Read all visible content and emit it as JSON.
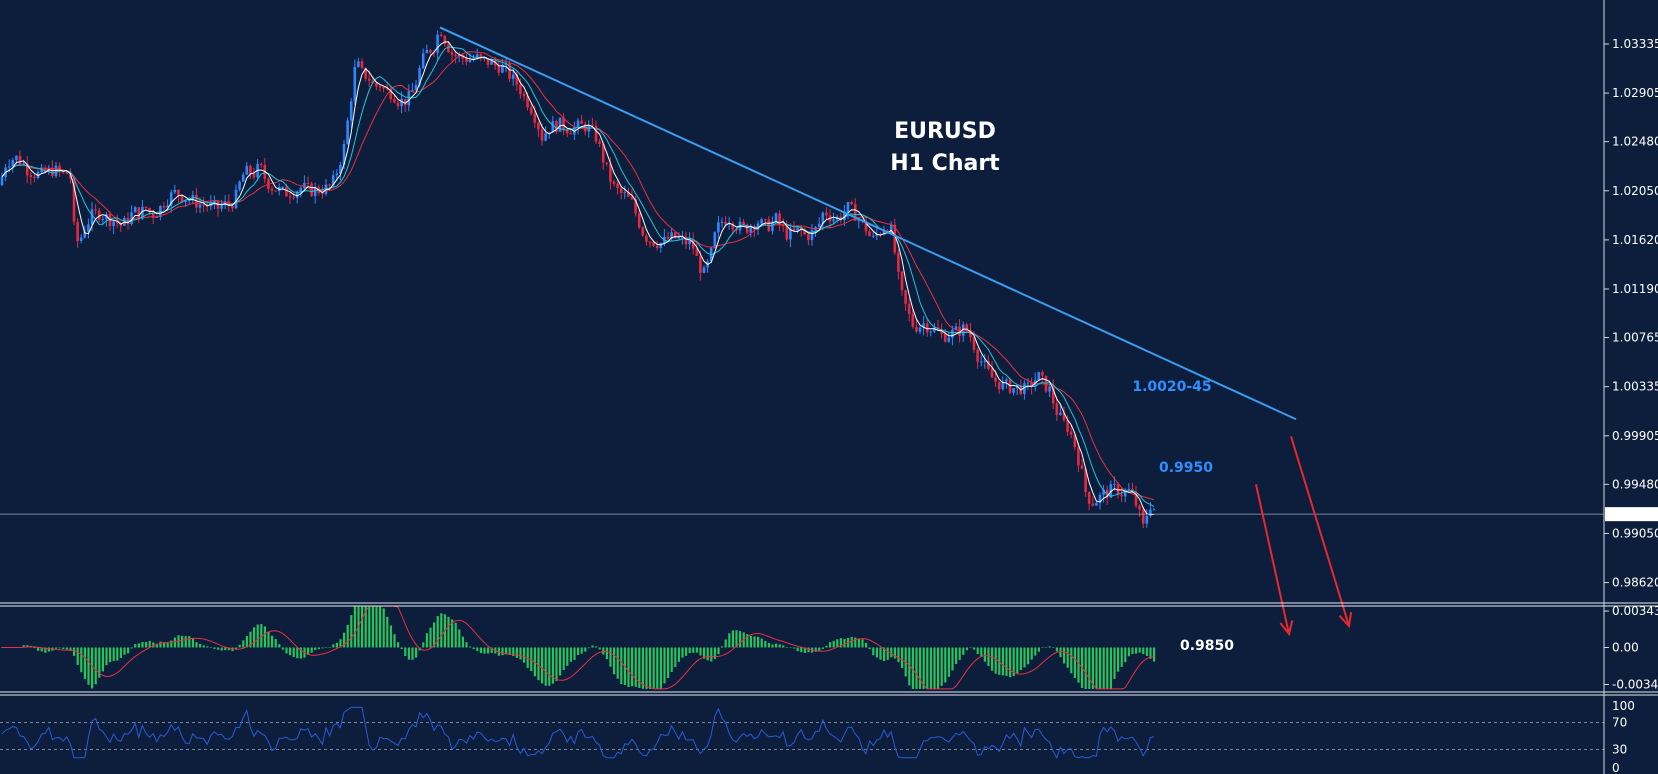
{
  "chart_data": [
    {
      "type": "candlestick",
      "title": "EURUSD",
      "subtitle": "H1 Chart",
      "ylim": [
        0.9845,
        1.0372
      ],
      "yticks": [
        "1.03335",
        "1.02905",
        "1.02480",
        "1.02050",
        "1.01620",
        "1.01190",
        "1.00765",
        "1.00335",
        "0.99905",
        "0.99480",
        "0.99050",
        "0.98620"
      ],
      "current_price": "0.99219",
      "price_path": [
        [
          0,
          1.021
        ],
        [
          5,
          1.0228
        ],
        [
          10,
          1.0232
        ],
        [
          16,
          1.0234
        ],
        [
          22,
          1.023
        ],
        [
          28,
          1.0223
        ],
        [
          34,
          1.022
        ],
        [
          40,
          1.0219
        ],
        [
          46,
          1.0221
        ],
        [
          52,
          1.0223
        ],
        [
          58,
          1.0222
        ],
        [
          64,
          1.0219
        ],
        [
          70,
          1.0222
        ],
        [
          75,
          1.016
        ],
        [
          80,
          1.0162
        ],
        [
          86,
          1.0175
        ],
        [
          92,
          1.0183
        ],
        [
          98,
          1.0186
        ],
        [
          104,
          1.0183
        ],
        [
          110,
          1.018
        ],
        [
          116,
          1.0178
        ],
        [
          122,
          1.0174
        ],
        [
          128,
          1.018
        ],
        [
          134,
          1.0187
        ],
        [
          140,
          1.0185
        ],
        [
          146,
          1.019
        ],
        [
          152,
          1.0184
        ],
        [
          158,
          1.0187
        ],
        [
          164,
          1.0195
        ],
        [
          170,
          1.02
        ],
        [
          176,
          1.0204
        ],
        [
          182,
          1.02
        ],
        [
          188,
          1.0198
        ],
        [
          194,
          1.0196
        ],
        [
          200,
          1.0193
        ],
        [
          206,
          1.0193
        ],
        [
          212,
          1.0191
        ],
        [
          218,
          1.019
        ],
        [
          224,
          1.0193
        ],
        [
          230,
          1.0192
        ],
        [
          236,
          1.02
        ],
        [
          242,
          1.0218
        ],
        [
          248,
          1.0222
        ],
        [
          254,
          1.022
        ],
        [
          260,
          1.0226
        ],
        [
          266,
          1.0214
        ],
        [
          272,
          1.0208
        ],
        [
          278,
          1.0206
        ],
        [
          284,
          1.0203
        ],
        [
          290,
          1.0204
        ],
        [
          296,
          1.0205
        ],
        [
          302,
          1.0208
        ],
        [
          308,
          1.0206
        ],
        [
          314,
          1.0205
        ],
        [
          320,
          1.0206
        ],
        [
          326,
          1.0207
        ],
        [
          332,
          1.021
        ],
        [
          338,
          1.0225
        ],
        [
          344,
          1.0243
        ],
        [
          350,
          1.028
        ],
        [
          356,
          1.0318
        ],
        [
          362,
          1.0308
        ],
        [
          368,
          1.0305
        ],
        [
          374,
          1.0296
        ],
        [
          380,
          1.0298
        ],
        [
          386,
          1.0292
        ],
        [
          392,
          1.0291
        ],
        [
          398,
          1.0284
        ],
        [
          404,
          1.0283
        ],
        [
          410,
          1.0287
        ],
        [
          416,
          1.03
        ],
        [
          422,
          1.0318
        ],
        [
          428,
          1.0328
        ],
        [
          434,
          1.0331
        ],
        [
          440,
          1.0348
        ],
        [
          446,
          1.0335
        ],
        [
          452,
          1.0325
        ],
        [
          458,
          1.0322
        ],
        [
          464,
          1.0321
        ],
        [
          470,
          1.032
        ],
        [
          476,
          1.0322
        ],
        [
          482,
          1.0318
        ],
        [
          488,
          1.0318
        ],
        [
          494,
          1.0315
        ],
        [
          500,
          1.0314
        ],
        [
          506,
          1.0311
        ],
        [
          512,
          1.0303
        ],
        [
          518,
          1.0298
        ],
        [
          524,
          1.0287
        ],
        [
          530,
          1.028
        ],
        [
          536,
          1.0268
        ],
        [
          542,
          1.0252
        ],
        [
          548,
          1.026
        ],
        [
          554,
          1.0262
        ],
        [
          560,
          1.0263
        ],
        [
          566,
          1.026
        ],
        [
          572,
          1.0259
        ],
        [
          578,
          1.0261
        ],
        [
          584,
          1.0262
        ],
        [
          590,
          1.0259
        ],
        [
          596,
          1.0252
        ],
        [
          602,
          1.0236
        ],
        [
          608,
          1.022
        ],
        [
          614,
          1.0208
        ],
        [
          620,
          1.0203
        ],
        [
          626,
          1.02
        ],
        [
          632,
          1.0194
        ],
        [
          638,
          1.018
        ],
        [
          644,
          1.0166
        ],
        [
          650,
          1.0162
        ],
        [
          656,
          1.016
        ],
        [
          662,
          1.0159
        ],
        [
          668,
          1.0163
        ],
        [
          674,
          1.0164
        ],
        [
          680,
          1.0162
        ],
        [
          686,
          1.016
        ],
        [
          692,
          1.0159
        ],
        [
          698,
          1.0142
        ],
        [
          704,
          1.0132
        ],
        [
          710,
          1.0145
        ],
        [
          716,
          1.017
        ],
        [
          722,
          1.0178
        ],
        [
          728,
          1.0182
        ],
        [
          734,
          1.0176
        ],
        [
          740,
          1.0173
        ],
        [
          746,
          1.0172
        ],
        [
          752,
          1.0176
        ],
        [
          758,
          1.0178
        ],
        [
          764,
          1.0174
        ],
        [
          770,
          1.0175
        ],
        [
          776,
          1.018
        ],
        [
          782,
          1.0172
        ],
        [
          788,
          1.0166
        ],
        [
          794,
          1.0168
        ],
        [
          800,
          1.0171
        ],
        [
          806,
          1.0165
        ],
        [
          812,
          1.0168
        ],
        [
          818,
          1.0173
        ],
        [
          824,
          1.0188
        ],
        [
          830,
          1.0183
        ],
        [
          836,
          1.018
        ],
        [
          842,
          1.0184
        ],
        [
          848,
          1.019
        ],
        [
          854,
          1.0186
        ],
        [
          860,
          1.0178
        ],
        [
          866,
          1.0172
        ],
        [
          872,
          1.0161
        ],
        [
          878,
          1.0168
        ],
        [
          884,
          1.0173
        ],
        [
          890,
          1.0176
        ],
        [
          895,
          1.015
        ],
        [
          900,
          1.0118
        ],
        [
          906,
          1.0103
        ],
        [
          912,
          1.0088
        ],
        [
          918,
          1.0086
        ],
        [
          924,
          1.0089
        ],
        [
          930,
          1.0085
        ],
        [
          936,
          1.0083
        ],
        [
          942,
          1.0078
        ],
        [
          948,
          1.0079
        ],
        [
          954,
          1.0081
        ],
        [
          960,
          1.0083
        ],
        [
          966,
          1.0085
        ],
        [
          972,
          1.0075
        ],
        [
          978,
          1.006
        ],
        [
          984,
          1.0052
        ],
        [
          990,
          1.0043
        ],
        [
          996,
          1.0038
        ],
        [
          1002,
          1.0035
        ],
        [
          1008,
          1.0034
        ],
        [
          1014,
          1.0032
        ],
        [
          1020,
          1.0033
        ],
        [
          1026,
          1.003
        ],
        [
          1032,
          1.0037
        ],
        [
          1038,
          1.0043
        ],
        [
          1044,
          1.0036
        ],
        [
          1050,
          1.003
        ],
        [
          1056,
          1.0013
        ],
        [
          1062,
          1.0003
        ],
        [
          1068,
          0.9998
        ],
        [
          1074,
          0.9985
        ],
        [
          1080,
          0.9965
        ],
        [
          1086,
          0.994
        ],
        [
          1092,
          0.9932
        ],
        [
          1098,
          0.9935
        ],
        [
          1104,
          0.994
        ],
        [
          1110,
          0.9942
        ],
        [
          1116,
          0.9945
        ],
        [
          1122,
          0.994
        ],
        [
          1128,
          0.9943
        ],
        [
          1134,
          0.9936
        ],
        [
          1140,
          0.992
        ],
        [
          1144,
          0.9908
        ],
        [
          1148,
          0.9928
        ],
        [
          1152,
          0.9932
        ],
        [
          1156,
          0.9922
        ]
      ],
      "trendline": {
        "from": [
          440,
          1.0348
        ],
        "to": [
          1296,
          1.0005
        ],
        "color": "#3b9cf0"
      },
      "price_line": 0.99219,
      "annotations": [
        {
          "text": "1.0020-45",
          "color": "#2f8fff",
          "price": 1.0032
        },
        {
          "text": "0.9950",
          "color": "#2f8fff",
          "price": 0.9962
        },
        {
          "text": "0.9850",
          "color": "#ffffff"
        }
      ],
      "projection_arrows": [
        {
          "from_price": 0.999,
          "color": "#e8282e"
        },
        {
          "from_price": 0.9948,
          "color": "#e8282e"
        }
      ],
      "colors": {
        "bull": "#2f86ff",
        "bear": "#e8283c",
        "ma_fast": "#ffffff",
        "ma_mid": "#1fc6d8",
        "ma_slow": "#e83040",
        "background": "#0c1e3c"
      }
    },
    {
      "type": "bar",
      "indicator": "MACD",
      "yticks": [
        "0.003432",
        "0.00",
        "-0.00348"
      ],
      "ylim": [
        -0.004,
        0.004
      ],
      "bar_color": "#26c45a",
      "signal_color": "#e83040"
    },
    {
      "type": "line",
      "indicator": "RSI",
      "yticks": [
        "100",
        "70",
        "30",
        "0"
      ],
      "ylim": [
        0,
        100
      ],
      "levels": [
        70,
        30
      ],
      "line_color": "#2a5bd8"
    }
  ]
}
